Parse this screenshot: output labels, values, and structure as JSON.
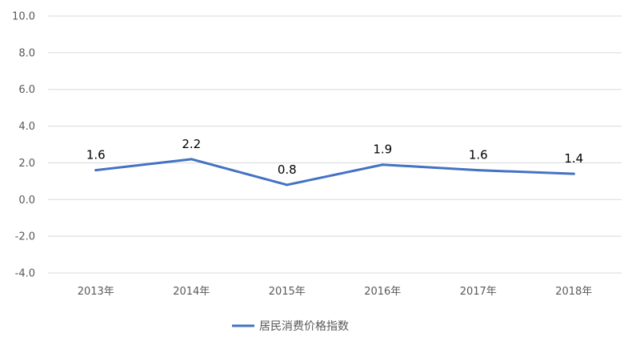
{
  "chart_data": {
    "type": "line",
    "categories": [
      "2013年",
      "2014年",
      "2015年",
      "2016年",
      "2017年",
      "2018年"
    ],
    "series": [
      {
        "name": "居民消费价格指数",
        "values": [
          1.6,
          2.2,
          0.8,
          1.9,
          1.6,
          1.4
        ],
        "color": "#4472C4"
      }
    ],
    "data_labels": [
      "1.6",
      "2.2",
      "0.8",
      "1.9",
      "1.6",
      "1.4"
    ],
    "y_ticks": [
      "10.0",
      "8.0",
      "6.0",
      "4.0",
      "2.0",
      "0.0",
      "-2.0",
      "-4.0"
    ],
    "ylim": [
      -4,
      10
    ],
    "grid": true,
    "legend_position": "bottom",
    "gridline_color": "#d9d9d9"
  }
}
